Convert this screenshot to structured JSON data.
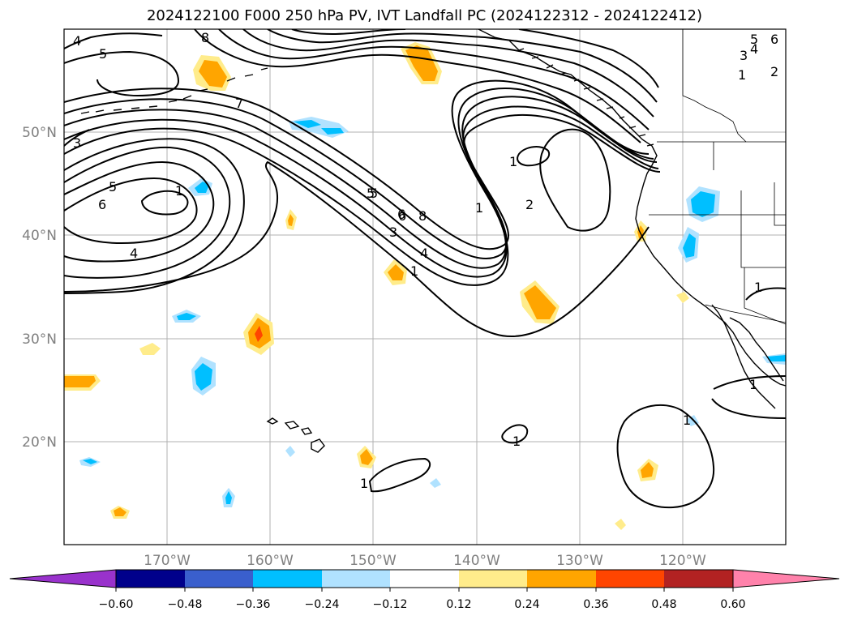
{
  "title": "2024122100 F000 250 hPa PV, IVT Landfall PC (2024122312 - 2024122412)",
  "map": {
    "projection": "PlateCarree",
    "extent": {
      "lon": [
        -180,
        -110
      ],
      "lat": [
        10,
        60
      ]
    },
    "latitude_labels": [
      "20°N",
      "30°N",
      "40°N",
      "50°N"
    ],
    "longitude_labels": [
      "170°W",
      "160°W",
      "150°W",
      "140°W",
      "130°W",
      "120°W"
    ],
    "gridlines": true
  },
  "colorbar": {
    "tick_labels": [
      "−0.60",
      "−0.48",
      "−0.36",
      "−0.24",
      "−0.12",
      "0.12",
      "0.24",
      "0.36",
      "0.48",
      "0.60"
    ],
    "colors": [
      "#9932cc",
      "#00008b",
      "#3a5fcd",
      "#00bfff",
      "#b0e2ff",
      "#ffffff",
      "#ffec8b",
      "#ffa500",
      "#ff4500",
      "#b22222",
      "#ff82ab"
    ],
    "extend": "both"
  },
  "contour_labels": [
    "4",
    "5",
    "8",
    "7",
    "5",
    "6",
    "3",
    "5",
    "6",
    "1",
    "4",
    "5",
    "3",
    "6",
    "8",
    "4",
    "1",
    "1",
    "2",
    "1",
    "3",
    "4",
    "5",
    "6",
    "2",
    "1",
    "1",
    "1",
    "1",
    "1",
    "1"
  ]
}
